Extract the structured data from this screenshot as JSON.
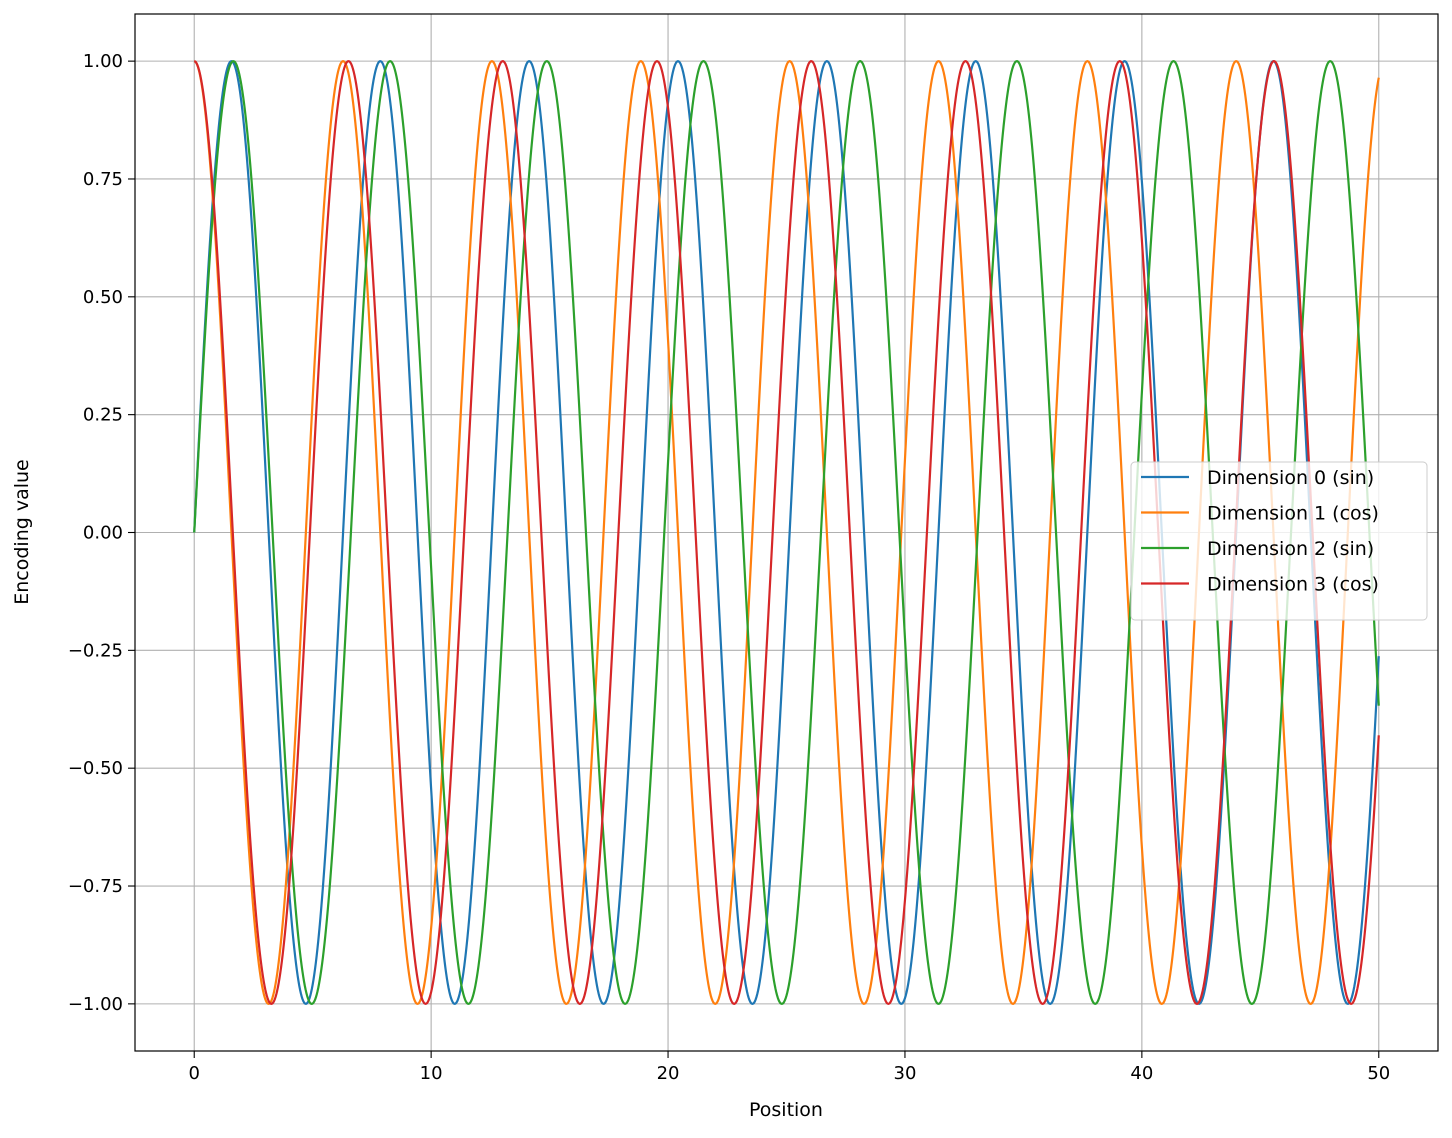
{
  "chart_data": {
    "type": "line",
    "title": "",
    "xlabel": "Position",
    "ylabel": "Encoding value",
    "xlim": [
      -2.5,
      52.5
    ],
    "ylim": [
      -1.1,
      1.1
    ],
    "x_range": [
      0,
      50
    ],
    "xticks": [
      0,
      10,
      20,
      30,
      40,
      50
    ],
    "xtick_labels": [
      "0",
      "10",
      "20",
      "30",
      "40",
      "50"
    ],
    "yticks": [
      1.0,
      0.75,
      0.5,
      0.25,
      0.0,
      -0.25,
      -0.5,
      -0.75,
      -1.0
    ],
    "ytick_labels": [
      "1.00",
      "0.75",
      "0.50",
      "0.25",
      "0.00",
      "−0.25",
      "−0.50",
      "−0.75",
      "−1.00"
    ],
    "grid": true,
    "legend_position": "center-right",
    "series": [
      {
        "name": "Dimension 0 (sin)",
        "function": "sin",
        "angular_frequency": 1.0,
        "color": "#1f77b4"
      },
      {
        "name": "Dimension 1 (cos)",
        "function": "cos",
        "angular_frequency": 1.0,
        "color": "#ff7f0e"
      },
      {
        "name": "Dimension 2 (sin)",
        "function": "sin",
        "angular_frequency": 0.95,
        "color": "#2ca02c"
      },
      {
        "name": "Dimension 3 (cos)",
        "function": "cos",
        "angular_frequency": 0.965,
        "color": "#d62728"
      }
    ]
  }
}
